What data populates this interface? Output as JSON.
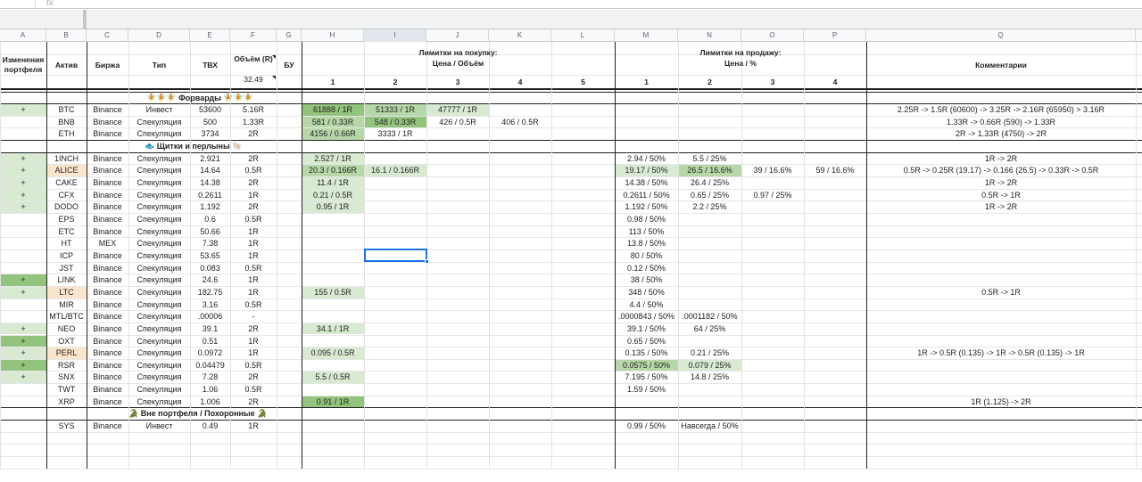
{
  "formula_bar": {
    "name_box": "",
    "fx": "fx"
  },
  "col_letters": [
    "A",
    "B",
    "C",
    "D",
    "E",
    "F",
    "G",
    "H",
    "I",
    "J",
    "K",
    "L",
    "M",
    "N",
    "O",
    "P",
    "Q"
  ],
  "header": {
    "a": "Изменения портфеля",
    "b": "Актив",
    "c": "Биржа",
    "d": "Тип",
    "e": "ТВХ",
    "f": "Объём (R)",
    "f_total": "32.49",
    "g": "БУ",
    "buy_title": "Лимитки на покупку:",
    "buy_sub": "Цена / Объём",
    "buy_nums": [
      "1",
      "2",
      "3",
      "4",
      "5"
    ],
    "sell_title": "Лимитки на продажу:",
    "sell_sub": "Цена / %",
    "sell_nums": [
      "1",
      "2",
      "3",
      "4"
    ],
    "q": "Комментарии"
  },
  "sections": {
    "forwards": "🧚🧚🧚 Форварды 🧚🧚🧚",
    "shields": "🐟 Щитки и перлыны 🐚",
    "outside": "🐊 Вне портфеля / Похоронные 🐊"
  },
  "rows": [
    {
      "a": "+",
      "b": "BTC",
      "c": "Binance",
      "d": "Инвест",
      "e": "53600",
      "f": "5.16R",
      "h": "61888 / 1R",
      "i": "51333 / 1R",
      "j": "47777 / 1R",
      "q": "2.25R -> 1.5R (60600) -> 3.25R -> 2.16R (65950) > 3.16R"
    },
    {
      "b": "BNB",
      "c": "Binance",
      "d": "Спекуляция",
      "e": "500",
      "f": "1.33R",
      "h": "581 / 0.33R",
      "i": "548 / 0.33R",
      "j": "426 / 0.5R",
      "k": "406 / 0.5R",
      "q": "1.33R -> 0.66R (590) -> 1.33R"
    },
    {
      "b": "ETH",
      "c": "Binance",
      "d": "Спекуляция",
      "e": "3734",
      "f": "2R",
      "h": "4156 / 0.66R",
      "i": "3333 / 1R",
      "q": "2R -> 1.33R (4750) -> 2R"
    },
    {
      "a": "+",
      "b": "1INCH",
      "c": "Binance",
      "d": "Спекуляция",
      "e": "2.921",
      "f": "2R",
      "h": "2.527 / 1R",
      "m": "2.94 / 50%",
      "n": "5.5 / 25%",
      "q": "1R -> 2R"
    },
    {
      "a": "+",
      "b": "ALICE",
      "c": "Binance",
      "d": "Спекуляция",
      "e": "14.64",
      "f": "0.5R",
      "h": "20.3 / 0.166R",
      "i": "16.1 / 0.166R",
      "m": "19.17 / 50%",
      "n": "26.5 / 16.6%",
      "o": "39 / 16.6%",
      "p": "59 / 16.6%",
      "q": "0.5R -> 0.25R (19.17) -> 0.166 (26.5) -> 0.33R -> 0.5R"
    },
    {
      "a": "+",
      "b": "CAKE",
      "c": "Binance",
      "d": "Спекуляция",
      "e": "14.38",
      "f": "2R",
      "h": "11.4 / 1R",
      "m": "14.38 / 50%",
      "n": "26.4 / 25%",
      "q": "1R -> 2R"
    },
    {
      "a": "+",
      "b": "CFX",
      "c": "Binance",
      "d": "Спекуляция",
      "e": "0.2611",
      "f": "1R",
      "h": "0.21 / 0.5R",
      "m": "0.2611 / 50%",
      "n": "0.65 / 25%",
      "o": "0.97 / 25%",
      "q": "0.5R -> 1R"
    },
    {
      "a": "+",
      "b": "DODO",
      "c": "Binance",
      "d": "Спекуляция",
      "e": "1.192",
      "f": "2R",
      "h": "0.95 / 1R",
      "m": "1.192 / 50%",
      "n": "2.2 / 25%",
      "q": "1R -> 2R"
    },
    {
      "b": "EPS",
      "c": "Binance",
      "d": "Спекуляция",
      "e": "0.6",
      "f": "0.5R",
      "m": "0.98 / 50%"
    },
    {
      "b": "ETC",
      "c": "Binance",
      "d": "Спекуляция",
      "e": "50.66",
      "f": "1R",
      "m": "113 / 50%"
    },
    {
      "b": "HT",
      "c": "MEX",
      "d": "Спекуляция",
      "e": "7.38",
      "f": "1R",
      "m": "13.8 / 50%"
    },
    {
      "b": "ICP",
      "c": "Binance",
      "d": "Спекуляция",
      "e": "53.65",
      "f": "1R",
      "m": "80 / 50%"
    },
    {
      "b": "JST",
      "c": "Binance",
      "d": "Спекуляция",
      "e": "0.083",
      "f": "0.5R",
      "m": "0.12 / 50%"
    },
    {
      "a": "+",
      "b": "LINK",
      "c": "Binance",
      "d": "Спекуляция",
      "e": "24.6",
      "f": "1R",
      "m": "38 / 50%"
    },
    {
      "a": "+",
      "b": "LTC",
      "c": "Binance",
      "d": "Спекуляция",
      "e": "182.75",
      "f": "1R",
      "h": "155 / 0.5R",
      "m": "348 / 50%",
      "q": "0.5R -> 1R"
    },
    {
      "b": "MIR",
      "c": "Binance",
      "d": "Спекуляция",
      "e": "3.16",
      "f": "0.5R",
      "m": "4.4 / 50%"
    },
    {
      "b": "MTL/BTC",
      "c": "Binance",
      "d": "Спекуляция",
      "e": ".00006",
      "f": "-",
      "m": ".0000843 / 50%",
      "n": ".0001182 / 50%"
    },
    {
      "a": "+",
      "b": "NEO",
      "c": "Binance",
      "d": "Спекуляция",
      "e": "39.1",
      "f": "2R",
      "h": "34.1 / 1R",
      "m": "39.1 / 50%",
      "n": "64 / 25%"
    },
    {
      "a": "+",
      "b": "OXT",
      "c": "Binance",
      "d": "Спекуляция",
      "e": "0.51",
      "f": "1R",
      "m": "0.65 / 50%"
    },
    {
      "a": "+",
      "b": "PERL",
      "c": "Binance",
      "d": "Спекуляция",
      "e": "0.0972",
      "f": "1R",
      "h": "0.095 / 0.5R",
      "m": "0.135 / 50%",
      "n": "0.21 / 25%",
      "q": "1R -> 0.5R (0.135) -> 1R -> 0.5R (0.135) -> 1R"
    },
    {
      "a": "+",
      "b": "RSR",
      "c": "Binance",
      "d": "Спекуляция",
      "e": "0.04479",
      "f": "0.5R",
      "m": "0.0575 / 50%",
      "n": "0.079 / 25%"
    },
    {
      "a": "+",
      "b": "SNX",
      "c": "Binance",
      "d": "Спекуляция",
      "e": "7.28",
      "f": "2R",
      "h": "5.5 / 0.5R",
      "m": "7.195 / 50%",
      "n": "14.8 / 25%"
    },
    {
      "b": "TWT",
      "c": "Binance",
      "d": "Спекуляция",
      "e": "1.06",
      "f": "0.5R",
      "m": "1.59 / 50%"
    },
    {
      "b": "XRP",
      "c": "Binance",
      "d": "Спекуляция",
      "e": "1.006",
      "f": "2R",
      "h": "0.91 / 1R",
      "q": "1R (1.125) -> 2R"
    },
    {
      "b": "SYS",
      "c": "Binance",
      "d": "Инвест",
      "e": "0.49",
      "f": "1R",
      "m": "0.99 / 50%",
      "n": "Навсегда / 50%"
    }
  ],
  "colors": {
    "green_dark": "#93c47d",
    "green_mid": "#b6d7a8",
    "green_light": "#d9ead3",
    "orange_light": "#fce5cd",
    "selection": "#1a73e8"
  }
}
